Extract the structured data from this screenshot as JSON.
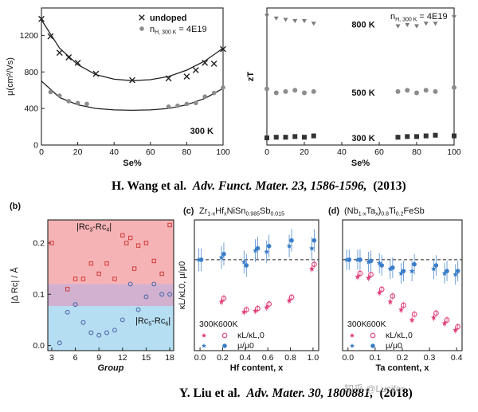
{
  "captions": {
    "top": {
      "authors": "H. Wang et al.",
      "journal": "Adv. Funct. Mater. 23, 1586-1596,",
      "year": "(2013)"
    },
    "bottom": {
      "authors": "Y. Liu et al.",
      "journal": "Adv. Mater. 30, 1800881,",
      "year": "(2018)"
    }
  },
  "watermark": "知乎 @Lucifer",
  "colors": {
    "grey_marker": "#8c8c8c",
    "red_band": "#f4a6a8",
    "blue_band": "#a8d8f0",
    "red_marker": "#e0407a",
    "blue_marker": "#3a7dc9",
    "red_square": "#d23a3a",
    "blue_circle": "#4c6aa8"
  },
  "chart_data": [
    {
      "id": "mobility",
      "type": "scatter",
      "xlabel": "Se%",
      "ylabel": "μ(cm²/Vs)",
      "xlim": [
        0,
        100
      ],
      "ylim": [
        0,
        1500
      ],
      "xticks": [
        "0",
        "20",
        "40",
        "60",
        "80",
        "100"
      ],
      "yticks": [
        "0",
        "400",
        "800",
        "1200"
      ],
      "annotation": "300 K",
      "series": [
        {
          "name": "undoped",
          "marker": "x",
          "x": [
            0,
            5,
            10,
            15,
            20,
            30,
            50,
            70,
            80,
            85,
            90,
            95,
            100
          ],
          "y": [
            1380,
            1190,
            1010,
            960,
            900,
            780,
            710,
            730,
            750,
            820,
            900,
            890,
            1050
          ]
        },
        {
          "name": "n_H, 300 K = 4E19",
          "name_parts": [
            "n",
            "H, 300 K",
            " = 4E19"
          ],
          "marker": "circle",
          "x": [
            5,
            10,
            15,
            20,
            25,
            70,
            75,
            80,
            85,
            90,
            95,
            100
          ],
          "y": [
            580,
            540,
            480,
            460,
            450,
            420,
            430,
            450,
            460,
            530,
            570,
            630
          ]
        }
      ],
      "fits": [
        {
          "x": [
            0,
            10,
            20,
            30,
            40,
            50,
            60,
            70,
            80,
            90,
            100
          ],
          "y": [
            1370,
            1060,
            880,
            770,
            720,
            705,
            715,
            750,
            820,
            920,
            1060
          ]
        },
        {
          "x": [
            0,
            10,
            20,
            30,
            40,
            50,
            60,
            70,
            80,
            90,
            100
          ],
          "y": [
            700,
            520,
            440,
            400,
            385,
            380,
            385,
            400,
            440,
            510,
            620
          ]
        }
      ]
    },
    {
      "id": "zT",
      "type": "scatter",
      "xlabel": "Se%",
      "ylabel": "zT",
      "xlim": [
        0,
        100
      ],
      "ylim": [
        0,
        1.05
      ],
      "xticks": [
        "0",
        "20",
        "40",
        "60",
        "80",
        "100"
      ],
      "legend": [
        "n",
        "H, 300 K",
        " = 4E19"
      ],
      "series": [
        {
          "name": "800 K",
          "marker": "triangle-down",
          "x": [
            0,
            5,
            10,
            15,
            20,
            25,
            70,
            75,
            80,
            85,
            90,
            100
          ],
          "y": [
            0.99,
            0.97,
            0.96,
            0.95,
            0.95,
            0.93,
            0.91,
            0.92,
            0.91,
            0.93,
            0.93,
            0.98
          ]
        },
        {
          "name": "500 K",
          "marker": "circle",
          "x": [
            0,
            5,
            10,
            15,
            20,
            25,
            70,
            75,
            80,
            85,
            90,
            100
          ],
          "y": [
            0.43,
            0.4,
            0.41,
            0.42,
            0.4,
            0.41,
            0.41,
            0.42,
            0.4,
            0.42,
            0.41,
            0.44
          ]
        },
        {
          "name": "300 K",
          "marker": "square",
          "x": [
            0,
            5,
            10,
            15,
            20,
            25,
            70,
            75,
            80,
            85,
            90,
            100
          ],
          "y": [
            0.055,
            0.06,
            0.06,
            0.065,
            0.06,
            0.07,
            0.06,
            0.065,
            0.065,
            0.07,
            0.075,
            0.07
          ]
        }
      ]
    },
    {
      "id": "b",
      "type": "scatter",
      "panel": "(b)",
      "xlabel": "Group",
      "ylabel": "|Δ Rc| / Å",
      "xlim": [
        2.5,
        18.5
      ],
      "ylim": [
        -0.01,
        0.245
      ],
      "xticks": [
        "3",
        "6",
        "9",
        "12",
        "15",
        "18"
      ],
      "yticks": [
        "0.0",
        "0.1",
        "0.2"
      ],
      "bands": [
        {
          "label": "|Rc3-Rc4|",
          "parts": [
            "|Rc",
            "3",
            "-Rc",
            "4",
            "|"
          ],
          "color": "red",
          "ymin": 0.12,
          "ymax": 0.245
        },
        {
          "label": "overlap",
          "color": "purple",
          "ymin": 0.077,
          "ymax": 0.12
        },
        {
          "label": "|Rc5-Rc6|",
          "parts": [
            "|Rc",
            "5",
            "-Rc",
            "6",
            "|"
          ],
          "color": "blue",
          "ymin": -0.01,
          "ymax": 0.077
        }
      ],
      "series": [
        {
          "name": "|Rc3-Rc4|",
          "marker": "square",
          "x": [
            3,
            5,
            6,
            7,
            8,
            9,
            10,
            11,
            12,
            12.5,
            13,
            13.5,
            14,
            15,
            16,
            17,
            18
          ],
          "y": [
            0.2,
            0.11,
            0.13,
            0.13,
            0.16,
            0.14,
            0.16,
            0.13,
            0.215,
            0.2,
            0.21,
            0.15,
            0.195,
            0.2,
            0.165,
            0.14,
            0.235
          ]
        },
        {
          "name": "|Rc5-Rc6|",
          "marker": "circle",
          "x": [
            4,
            5,
            6,
            7,
            8,
            9,
            10,
            11,
            12,
            13,
            14,
            15,
            16,
            17,
            18
          ],
          "y": [
            0.005,
            0.065,
            0.08,
            0.045,
            0.025,
            0.02,
            0.025,
            0.03,
            0.05,
            0.12,
            0.07,
            0.095,
            0.12,
            0.1,
            0.1
          ]
        }
      ]
    },
    {
      "id": "c",
      "type": "scatter",
      "panel": "(c)",
      "title": "Zr1-xHfxNiSn0.985Sb0.015",
      "title_parts": [
        "Zr",
        "1-x",
        "Hf",
        "x",
        "NiSn",
        "0.985",
        "Sb",
        "0.015"
      ],
      "xlabel": "Hf content, x",
      "ylabel": "κL/κL0, μ/μ0",
      "xlim": [
        -0.05,
        1.05
      ],
      "ylim": [
        0.2,
        1.35
      ],
      "xticks": [
        "0.0",
        "0.2",
        "0.4",
        "0.6",
        "0.8",
        "1.0"
      ],
      "reference_line": 1.0,
      "legend": {
        "header": [
          "300K",
          "600K"
        ],
        "rows": [
          "κL/κL,0",
          "μ/μ0"
        ]
      },
      "series": [
        {
          "name": "μ/μ0 300K",
          "marker": "star",
          "x": [
            0,
            0.2,
            0.4,
            0.5,
            0.6,
            0.8,
            1.0
          ],
          "y": [
            1.0,
            1.02,
            0.98,
            1.08,
            1.07,
            1.12,
            1.1
          ],
          "err": 0.1
        },
        {
          "name": "μ/μ0 600K",
          "marker": "circle-filled",
          "x": [
            0,
            0.2,
            0.4,
            0.5,
            0.6,
            0.8,
            1.0
          ],
          "y": [
            1.0,
            1.05,
            0.95,
            1.1,
            1.12,
            1.17,
            1.17
          ],
          "err": 0.1
        },
        {
          "name": "κL/κL,0 300K",
          "marker": "star",
          "x": [
            0.2,
            0.4,
            0.5,
            0.6,
            0.8,
            1.0
          ],
          "y": [
            0.63,
            0.54,
            0.55,
            0.58,
            0.64,
            0.92
          ],
          "err": 0.03
        },
        {
          "name": "κL/κL,0 600K",
          "marker": "circle-open",
          "x": [
            0.2,
            0.4,
            0.5,
            0.6,
            0.8,
            1.0
          ],
          "y": [
            0.66,
            0.56,
            0.57,
            0.61,
            0.67,
            0.96
          ],
          "err": 0.03
        }
      ]
    },
    {
      "id": "d",
      "type": "scatter",
      "panel": "(d)",
      "title": "(Nb1-xTax)0.8Ti0.2FeSb",
      "title_parts": [
        "(Nb",
        "1-x",
        "Ta",
        "x",
        ")",
        "0.8",
        "Ti",
        "0.2",
        "FeSb"
      ],
      "xlabel": "Ta content, x",
      "xlim": [
        -0.02,
        0.42
      ],
      "ylim": [
        0.2,
        1.35
      ],
      "xticks": [
        "0.0",
        "0.1",
        "0.2",
        "0.3",
        "0.4"
      ],
      "reference_line": 1.0,
      "legend": {
        "header": [
          "300K",
          "600K"
        ],
        "rows": [
          "κL/κL,0",
          "μ/μ0"
        ]
      },
      "series": [
        {
          "name": "μ/μ0 300K",
          "marker": "star",
          "x": [
            0,
            0.04,
            0.08,
            0.12,
            0.16,
            0.2,
            0.24,
            0.32,
            0.36,
            0.4
          ],
          "y": [
            1.0,
            1.0,
            0.98,
            0.97,
            0.92,
            0.88,
            0.9,
            0.92,
            0.88,
            0.87
          ],
          "err": 0.09
        },
        {
          "name": "μ/μ0 600K",
          "marker": "circle-filled",
          "x": [
            0,
            0.04,
            0.08,
            0.12,
            0.16,
            0.2,
            0.24,
            0.32,
            0.36,
            0.4
          ],
          "y": [
            1.0,
            1.0,
            0.99,
            0.95,
            0.93,
            0.9,
            0.96,
            0.95,
            0.9,
            0.9
          ],
          "err": 0.09
        },
        {
          "name": "κL/κL,0 300K",
          "marker": "star",
          "x": [
            0.04,
            0.08,
            0.12,
            0.16,
            0.2,
            0.24,
            0.32,
            0.36,
            0.4
          ],
          "y": [
            0.85,
            0.84,
            0.71,
            0.63,
            0.56,
            0.47,
            0.49,
            0.44,
            0.38
          ],
          "err": 0.03
        },
        {
          "name": "κL/κL,0 600K",
          "marker": "circle-open",
          "x": [
            0.04,
            0.08,
            0.12,
            0.16,
            0.2,
            0.24,
            0.32,
            0.36,
            0.4
          ],
          "y": [
            0.88,
            0.87,
            0.74,
            0.68,
            0.6,
            0.52,
            0.53,
            0.47,
            0.41
          ],
          "err": 0.03
        }
      ]
    }
  ]
}
